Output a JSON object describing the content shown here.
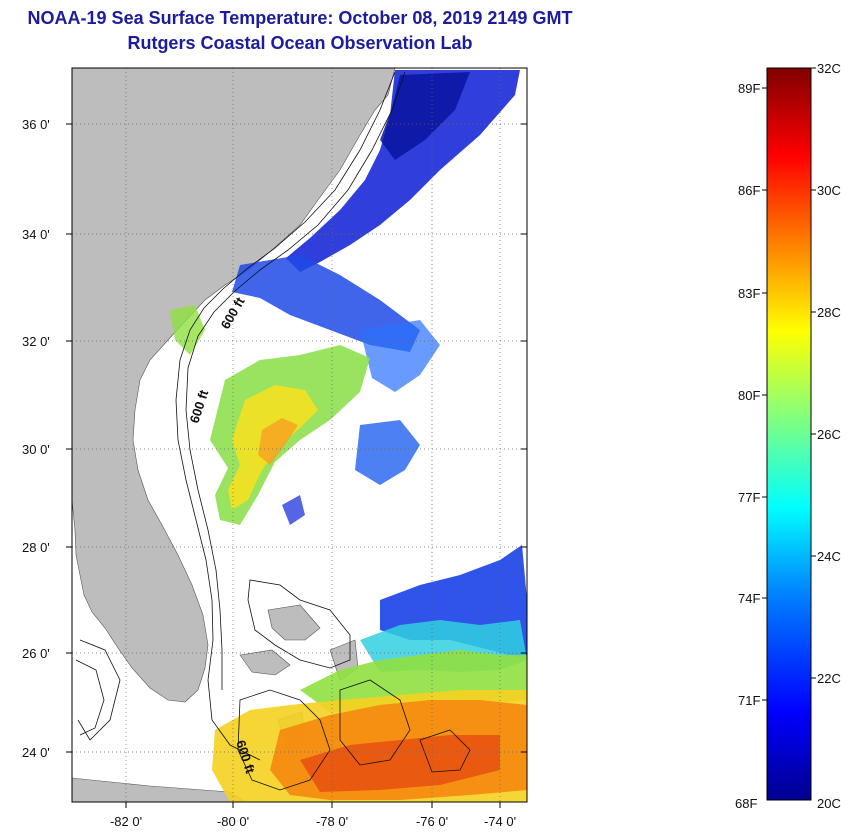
{
  "title": "NOAA-19 Sea Surface Temperature:  October 08, 2019 2149 GMT",
  "subtitle": "Rutgers Coastal Ocean Observation Lab",
  "map": {
    "lat_labels": [
      "36 0'",
      "34 0'",
      "32 0'",
      "30 0'",
      "28 0'",
      "26 0'",
      "24 0'"
    ],
    "lon_labels": [
      "-82 0'",
      "-80 0'",
      "-78 0'",
      "-76 0'",
      "-74 0'"
    ],
    "contour_labels": [
      "600 ft",
      "600 ft",
      "600 ft"
    ],
    "land_color": "#bdbdbd"
  },
  "colorbar": {
    "fahrenheit_labels": [
      "89F",
      "86F",
      "83F",
      "80F",
      "77F",
      "74F",
      "71F",
      "68F"
    ],
    "celsius_labels": [
      "32C",
      "30C",
      "28C",
      "26C",
      "24C",
      "22C",
      "20C"
    ],
    "colors": [
      "#00008f",
      "#0000ff",
      "#0080ff",
      "#00ffff",
      "#80ff80",
      "#ffff00",
      "#ff8000",
      "#ff0000",
      "#800000"
    ]
  }
}
